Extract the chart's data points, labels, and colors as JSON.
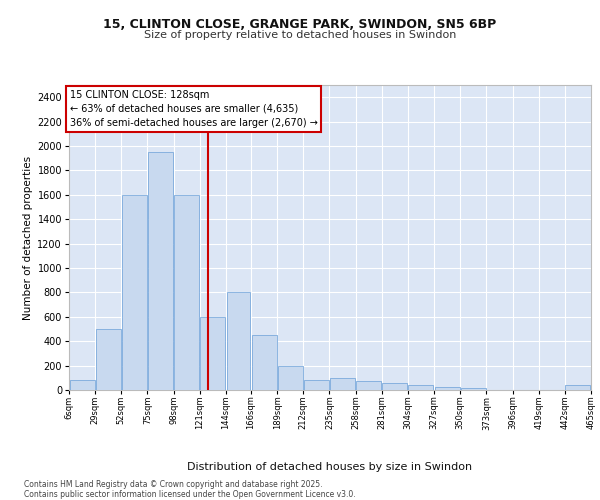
{
  "title_line1": "15, CLINTON CLOSE, GRANGE PARK, SWINDON, SN5 6BP",
  "title_line2": "Size of property relative to detached houses in Swindon",
  "xlabel": "Distribution of detached houses by size in Swindon",
  "ylabel": "Number of detached properties",
  "bar_color": "#c8d9ef",
  "bar_edge_color": "#6a9fd8",
  "background_color": "#dce6f5",
  "grid_color": "#ffffff",
  "vline_color": "#cc0000",
  "vline_x": 128,
  "annotation_text": "15 CLINTON CLOSE: 128sqm\n← 63% of detached houses are smaller (4,635)\n36% of semi-detached houses are larger (2,670) →",
  "footer_text": "Contains HM Land Registry data © Crown copyright and database right 2025.\nContains public sector information licensed under the Open Government Licence v3.0.",
  "bin_edges": [
    6,
    29,
    52,
    75,
    98,
    121,
    144,
    166,
    189,
    212,
    235,
    258,
    281,
    304,
    327,
    350,
    373,
    396,
    419,
    442,
    465
  ],
  "bin_labels": [
    "6sqm",
    "29sqm",
    "52sqm",
    "75sqm",
    "98sqm",
    "121sqm",
    "144sqm",
    "166sqm",
    "189sqm",
    "212sqm",
    "235sqm",
    "258sqm",
    "281sqm",
    "304sqm",
    "327sqm",
    "350sqm",
    "373sqm",
    "396sqm",
    "419sqm",
    "442sqm",
    "465sqm"
  ],
  "bar_heights": [
    80,
    500,
    1600,
    1950,
    1600,
    600,
    800,
    450,
    200,
    80,
    100,
    70,
    55,
    40,
    25,
    15,
    0,
    0,
    0,
    40
  ],
  "ylim": [
    0,
    2500
  ],
  "yticks": [
    0,
    200,
    400,
    600,
    800,
    1000,
    1200,
    1400,
    1600,
    1800,
    2000,
    2200,
    2400
  ],
  "figsize": [
    6.0,
    5.0
  ],
  "dpi": 100
}
